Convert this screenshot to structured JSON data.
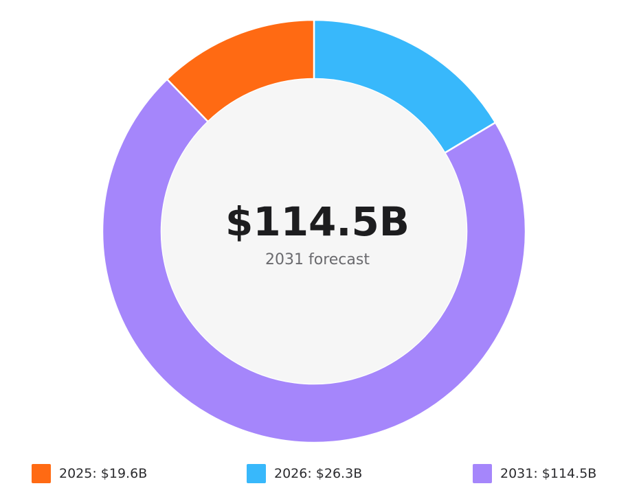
{
  "chart_data": {
    "type": "pie",
    "style": "donut",
    "center": {
      "value": "$114.5B",
      "label": "2031 forecast"
    },
    "slices": [
      {
        "label": "2025",
        "value": 19.6,
        "display": "2025: $19.6B",
        "color": "#ff6a13"
      },
      {
        "label": "2026",
        "value": 26.3,
        "display": "2026: $26.3B",
        "color": "#38b8fb"
      },
      {
        "label": "2031",
        "value": 114.5,
        "display": "2031: $114.5B",
        "color": "#a586fb"
      }
    ],
    "legend_position": "bottom"
  }
}
